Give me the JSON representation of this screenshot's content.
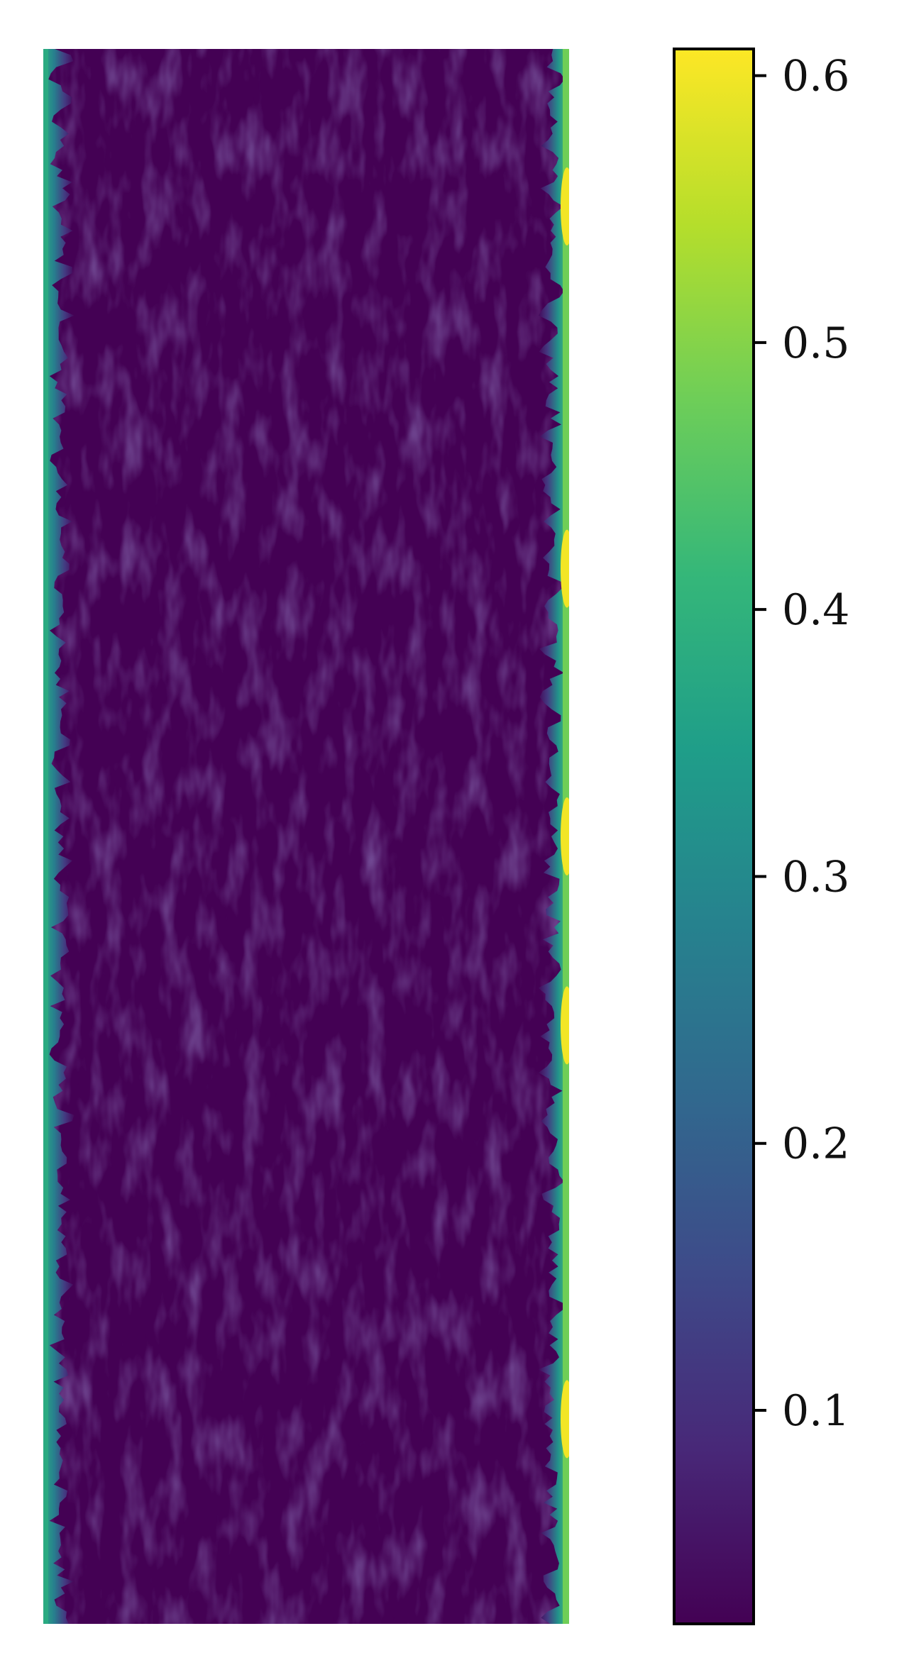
{
  "chart_data": {
    "type": "heatmap",
    "title": "",
    "xlabel": "",
    "ylabel": "",
    "colormap": "viridis",
    "colorbar": {
      "range": [
        0.02,
        0.61
      ],
      "ticks": [
        {
          "value": 0.1,
          "label": "0.1"
        },
        {
          "value": 0.2,
          "label": "0.2"
        },
        {
          "value": 0.3,
          "label": "0.3"
        },
        {
          "value": 0.4,
          "label": "0.4"
        },
        {
          "value": 0.5,
          "label": "0.5"
        },
        {
          "value": 0.6,
          "label": "0.6"
        }
      ]
    },
    "field": {
      "description_values": {
        "core": 0.03,
        "turbulent_fluctuation_max": 0.12,
        "left_wall": 0.38,
        "right_wall_min": 0.45,
        "right_wall_peak": 0.6
      },
      "right_wall_peaks_relative_y": [
        0.1,
        0.33,
        0.5,
        0.62,
        0.87
      ]
    },
    "axes_visible": false,
    "grid": false
  },
  "colors": {
    "viridis_stops": [
      "#440154",
      "#482878",
      "#3e4a89",
      "#31688e",
      "#26828e",
      "#1f9e89",
      "#35b779",
      "#6ece58",
      "#b5de2b",
      "#fde725"
    ],
    "frame": "#000000",
    "text": "#111111"
  }
}
